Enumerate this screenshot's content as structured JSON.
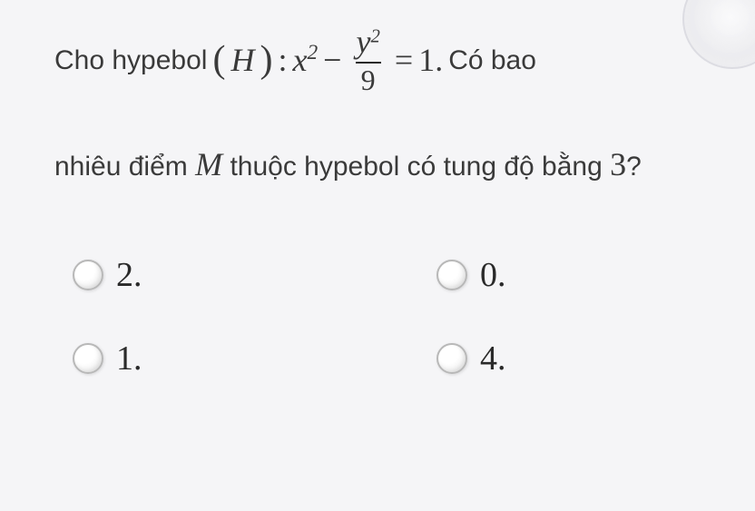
{
  "question": {
    "prefix": "Cho hypebol",
    "label_open": "(",
    "label": "H",
    "label_close": ")",
    "colon": " : ",
    "lhs_var": "x",
    "lhs_exp": "2",
    "minus": " − ",
    "frac_num_var": "y",
    "frac_num_exp": "2",
    "frac_den": "9",
    "eq": " = ",
    "rhs": "1.",
    "suffix1": " Có bao",
    "line2_a": "nhiêu điểm ",
    "line2_M": "M",
    "line2_b": " thuộc hypebol có tung độ bằng ",
    "line2_val": "3",
    "line2_q": "?"
  },
  "options": {
    "a": "2.",
    "b": "0.",
    "c": "1.",
    "d": "4."
  },
  "style": {
    "background_color": "#f5f5f7",
    "text_color": "#2a2a2a",
    "radio_border": "#b8b8b8",
    "body_fontsize": 30,
    "math_fontsize": 36,
    "option_fontsize": 38
  }
}
